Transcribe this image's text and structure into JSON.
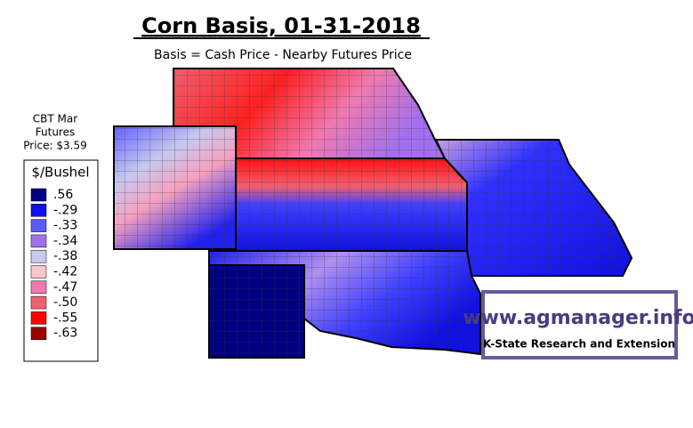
{
  "title": "Corn Basis, 01-31-2018",
  "subtitle": "Basis = Cash Price - Nearby Futures Price",
  "futures_note": [
    "CBT Mar",
    "Futures",
    "Price: $3.59"
  ],
  "legend": {
    "title": "$/Bushel",
    "items": [
      {
        "label": ".56",
        "color": "#000080"
      },
      {
        "label": "-.29",
        "color": "#1010f0"
      },
      {
        "label": "-.33",
        "color": "#5a5aff"
      },
      {
        "label": "-.34",
        "color": "#a070f0"
      },
      {
        "label": "-.38",
        "color": "#c8c8f0"
      },
      {
        "label": "-.42",
        "color": "#f5c8d0"
      },
      {
        "label": "-.47",
        "color": "#f07ab0"
      },
      {
        "label": "-.50",
        "color": "#f06070"
      },
      {
        "label": "-.55",
        "color": "#ff0000"
      },
      {
        "label": "-.63",
        "color": "#990000"
      }
    ]
  },
  "logo": {
    "url": "www.agmanager.info",
    "org": "K-State Research and Extension"
  }
}
